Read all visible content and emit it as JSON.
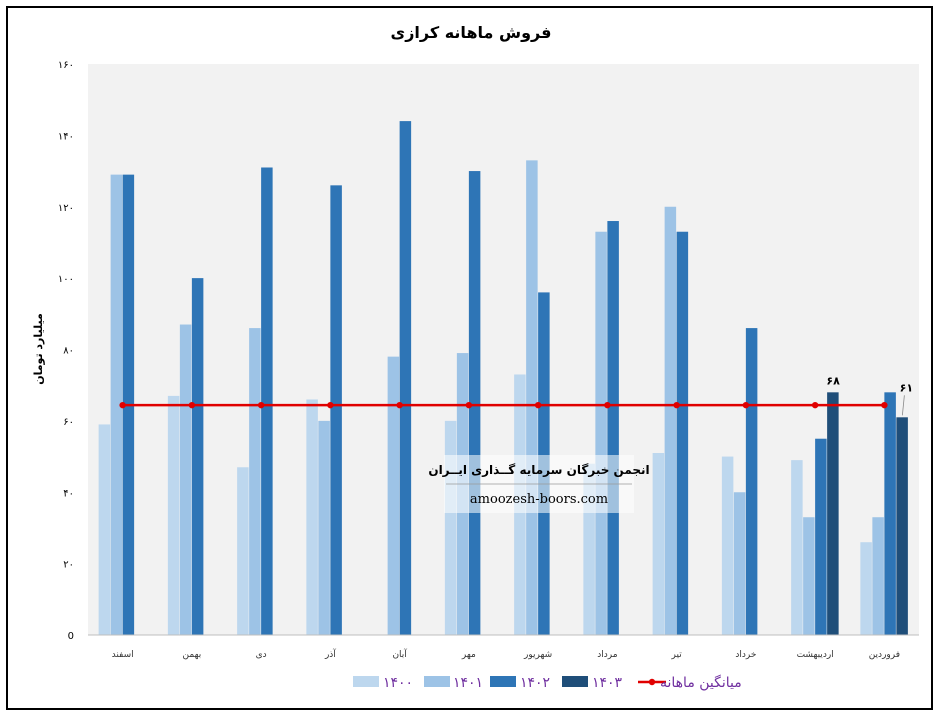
{
  "chart_data": {
    "type": "bar",
    "title": "فروش ماهانه کرازی",
    "ylabel": "میلیارد تومان",
    "ylim": [
      0,
      160
    ],
    "yticks": [
      0,
      20,
      40,
      60,
      80,
      100,
      120,
      140,
      160
    ],
    "ytick_labels": [
      "0",
      "۲۰",
      "۴۰",
      "۶۰",
      "۸۰",
      "۱۰۰",
      "۱۲۰",
      "۱۴۰",
      "۱۶۰"
    ],
    "categories": [
      "اسفند",
      "بهمن",
      "دی",
      "آذر",
      "آبان",
      "مهر",
      "شهریور",
      "مرداد",
      "تیر",
      "خرداد",
      "اردیبهشت",
      "فروردین"
    ],
    "series": [
      {
        "name": "۱۴۰۰",
        "color": "#bdd7ee",
        "values": [
          59,
          67,
          47,
          66,
          null,
          60,
          73,
          48,
          51,
          50,
          49,
          26
        ]
      },
      {
        "name": "۱۴۰۱",
        "color": "#9dc3e6",
        "values": [
          129,
          87,
          86,
          60,
          78,
          79,
          133,
          113,
          120,
          40,
          33,
          33
        ]
      },
      {
        "name": "۱۴۰۲",
        "color": "#2e75b6",
        "values": [
          129,
          100,
          131,
          126,
          144,
          130,
          96,
          116,
          113,
          86,
          55,
          68
        ]
      },
      {
        "name": "۱۴۰۳",
        "color": "#1f4e79",
        "values": [
          null,
          null,
          null,
          null,
          null,
          null,
          null,
          null,
          null,
          null,
          68,
          61
        ]
      }
    ],
    "average_line": {
      "name": "میانگین ماهانه",
      "value": 64.4,
      "color": "#e00000"
    },
    "data_labels": [
      {
        "series": "۱۴۰۳",
        "category": "فروردین",
        "text": "۶۱"
      },
      {
        "series": "۱۴۰۳",
        "category": "اردیبهشت",
        "text": "۶۸"
      }
    ],
    "legend_position": "bottom",
    "grid": false
  },
  "watermark": {
    "line1": "انجمن خبرگان سرمایه گــذاری ایــران",
    "line2": "amoozesh-boors.com"
  }
}
